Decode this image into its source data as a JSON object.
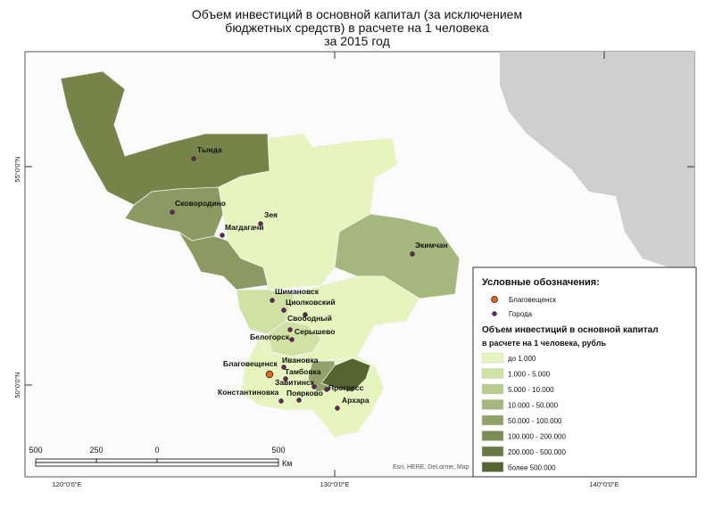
{
  "title": [
    "Объем инвестиций в основной капитал (за исключением",
    "бюджетных средств) в расчете на 1 человека",
    "за 2015 год"
  ],
  "coordinates": {
    "lat": [
      "55°0'0\"N",
      "50°0'0\"N"
    ],
    "lon": [
      "120°0'0\"E",
      "130°0'0\"E",
      "140°0'0\"E"
    ]
  },
  "cities": [
    "Тында",
    "Сковородино",
    "Зея",
    "Магдагачи",
    "Экимчан",
    "Шимановск",
    "Циолковский",
    "Свободный",
    "Серышево",
    "Белогорск",
    "Благовещенск",
    "Ивановка",
    "Тамбовка",
    "Завитинск",
    "Прогресс",
    "Константиновка",
    "Поярково",
    "Архара"
  ],
  "legend": {
    "title": "Условные обозначения:",
    "capital": "Благовещенск",
    "cities": "Города",
    "subtitle": [
      "Объем инвестиций в основной капитал",
      "в расчете на 1 человека, рубль"
    ],
    "classes": [
      {
        "label": "до 1.000",
        "color": "#e6f4bd"
      },
      {
        "label": "1.000 - 5.000",
        "color": "#cfe2a4"
      },
      {
        "label": "5.000 - 10.000",
        "color": "#b9cd8f"
      },
      {
        "label": "10.000 - 50.000",
        "color": "#a4b87d"
      },
      {
        "label": "50.000 - 100.000",
        "color": "#8fa26a"
      },
      {
        "label": "100.000 - 200.000",
        "color": "#7b8d56"
      },
      {
        "label": "200.000 - 500.000",
        "color": "#677a43"
      },
      {
        "label": "более 500.000",
        "color": "#546532"
      }
    ]
  },
  "scale": {
    "labels": [
      "500",
      "250",
      "0",
      "500"
    ],
    "unit": "Км"
  },
  "attribution": "Esri, HERE, DeLorme, Map"
}
